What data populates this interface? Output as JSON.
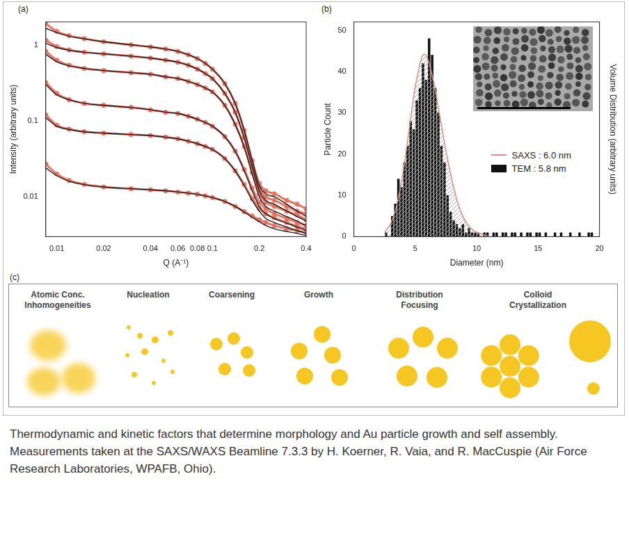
{
  "chart_data": [
    {
      "type": "line",
      "panel_label": "(a)",
      "log": true,
      "grid": false,
      "x_label": "Q (A⁻¹)",
      "y_label": "Intensity (arbitrary units)",
      "xlim": [
        0.0085,
        0.4
      ],
      "ylim": [
        0.003,
        2
      ],
      "xticks": [
        0.01,
        0.02,
        0.04,
        0.06,
        0.08,
        0.1,
        0.2,
        0.4
      ],
      "yticks": [
        0.01,
        0.1,
        1
      ],
      "x": [
        0.0085,
        0.01,
        0.012,
        0.015,
        0.02,
        0.03,
        0.04,
        0.05,
        0.06,
        0.07,
        0.08,
        0.09,
        0.1,
        0.12,
        0.14,
        0.16,
        0.18,
        0.2,
        0.22,
        0.25,
        0.3,
        0.35,
        0.4
      ],
      "series": [
        {
          "color": "#e8735f",
          "marker": "circle",
          "values": [
            1.9,
            1.5,
            1.32,
            1.21,
            1.1,
            1.0,
            0.94,
            0.88,
            0.82,
            0.74,
            0.66,
            0.57,
            0.48,
            0.31,
            0.17,
            0.075,
            0.03,
            0.015,
            0.012,
            0.011,
            0.009,
            0.008,
            0.007
          ]
        },
        {
          "color": "#1a1a1a",
          "line_style": "solid",
          "values": [
            1.65,
            1.45,
            1.3,
            1.2,
            1.1,
            1.0,
            0.94,
            0.88,
            0.82,
            0.74,
            0.66,
            0.57,
            0.48,
            0.31,
            0.17,
            0.075,
            0.03,
            0.014,
            0.011,
            0.01,
            0.008,
            0.0065,
            0.0055
          ]
        },
        {
          "color": "#e8735f",
          "marker": "circle",
          "values": [
            1.15,
            0.95,
            0.86,
            0.8,
            0.76,
            0.71,
            0.67,
            0.63,
            0.59,
            0.54,
            0.48,
            0.42,
            0.36,
            0.23,
            0.13,
            0.06,
            0.026,
            0.013,
            0.01,
            0.009,
            0.0075,
            0.0065,
            0.006
          ]
        },
        {
          "color": "#1a1a1a",
          "line_style": "solid",
          "values": [
            1.05,
            0.92,
            0.85,
            0.8,
            0.76,
            0.71,
            0.67,
            0.63,
            0.59,
            0.54,
            0.48,
            0.42,
            0.36,
            0.23,
            0.13,
            0.06,
            0.025,
            0.012,
            0.009,
            0.008,
            0.0065,
            0.0055,
            0.0048
          ]
        },
        {
          "color": "#e8735f",
          "marker": "circle",
          "values": [
            0.82,
            0.63,
            0.54,
            0.49,
            0.46,
            0.43,
            0.41,
            0.38,
            0.36,
            0.33,
            0.3,
            0.27,
            0.24,
            0.16,
            0.09,
            0.046,
            0.021,
            0.011,
            0.0085,
            0.0075,
            0.0065,
            0.0058,
            0.005
          ]
        },
        {
          "color": "#1a1a1a",
          "line_style": "solid",
          "values": [
            0.75,
            0.6,
            0.53,
            0.49,
            0.46,
            0.43,
            0.41,
            0.38,
            0.36,
            0.33,
            0.3,
            0.27,
            0.24,
            0.16,
            0.09,
            0.045,
            0.02,
            0.01,
            0.0075,
            0.0065,
            0.0055,
            0.0048,
            0.0042
          ]
        },
        {
          "color": "#e8735f",
          "marker": "circle",
          "values": [
            0.32,
            0.23,
            0.19,
            0.17,
            0.16,
            0.15,
            0.14,
            0.13,
            0.125,
            0.115,
            0.105,
            0.095,
            0.085,
            0.062,
            0.04,
            0.023,
            0.013,
            0.0085,
            0.007,
            0.006,
            0.0052,
            0.0046,
            0.0042
          ]
        },
        {
          "color": "#1a1a1a",
          "line_style": "solid",
          "values": [
            0.3,
            0.22,
            0.19,
            0.17,
            0.16,
            0.15,
            0.14,
            0.13,
            0.125,
            0.115,
            0.105,
            0.095,
            0.085,
            0.062,
            0.04,
            0.022,
            0.012,
            0.0075,
            0.006,
            0.0052,
            0.0045,
            0.004,
            0.0036
          ]
        },
        {
          "color": "#e8735f",
          "marker": "circle",
          "values": [
            0.12,
            0.088,
            0.078,
            0.072,
            0.069,
            0.066,
            0.064,
            0.061,
            0.058,
            0.054,
            0.05,
            0.046,
            0.042,
            0.032,
            0.022,
            0.0145,
            0.0095,
            0.007,
            0.006,
            0.0053,
            0.0046,
            0.0041,
            0.0038
          ]
        },
        {
          "color": "#1a1a1a",
          "line_style": "solid",
          "values": [
            0.11,
            0.085,
            0.077,
            0.072,
            0.069,
            0.066,
            0.064,
            0.061,
            0.058,
            0.054,
            0.05,
            0.046,
            0.042,
            0.032,
            0.022,
            0.014,
            0.009,
            0.0065,
            0.0052,
            0.0046,
            0.004,
            0.0036,
            0.0033
          ]
        },
        {
          "color": "#e8735f",
          "marker": "circle",
          "values": [
            0.027,
            0.02,
            0.0165,
            0.0146,
            0.0135,
            0.0128,
            0.0124,
            0.012,
            0.0116,
            0.0112,
            0.0108,
            0.0103,
            0.0098,
            0.0087,
            0.0075,
            0.0064,
            0.0056,
            0.005,
            0.0046,
            0.0042,
            0.0038,
            0.0036,
            0.0034
          ]
        },
        {
          "color": "#1a1a1a",
          "line_style": "solid",
          "values": [
            0.024,
            0.019,
            0.016,
            0.0145,
            0.0135,
            0.0128,
            0.0124,
            0.012,
            0.0116,
            0.0112,
            0.0108,
            0.0103,
            0.0098,
            0.0087,
            0.0075,
            0.0063,
            0.0054,
            0.0047,
            0.0042,
            0.0038,
            0.0035,
            0.0033,
            0.0031
          ]
        }
      ]
    },
    {
      "type": "histogram",
      "panel_label": "(b)",
      "grid": false,
      "legend": "right",
      "x_label": "Diameter (nm)",
      "y_label": "Particle Count",
      "y2_label": "Volume Distribution (arbitrary units)",
      "xlim": [
        0,
        20
      ],
      "ylim": [
        0,
        52
      ],
      "y2lim": [
        0,
        1
      ],
      "xticks": [
        0,
        5,
        10,
        15,
        20
      ],
      "yticks": [
        0,
        10,
        20,
        30,
        40,
        50
      ],
      "bins": [
        2.5,
        2.75,
        3,
        3.25,
        3.5,
        3.75,
        4,
        4.25,
        4.5,
        4.75,
        5,
        5.25,
        5.5,
        5.75,
        6,
        6.25,
        6.5,
        6.75,
        7,
        7.25,
        7.5,
        7.75,
        8,
        8.25,
        8.5,
        8.75,
        9,
        9.25,
        9.5,
        9.75,
        10,
        10.25,
        10.5,
        10.75,
        11,
        11.25,
        11.5,
        11.75,
        12,
        12.25,
        12.5,
        12.75,
        13,
        13.25,
        13.5,
        13.75,
        14,
        14.25,
        14.5,
        14.75,
        15,
        15.25,
        15.5,
        15.75,
        16,
        16.25,
        16.5,
        16.75,
        17,
        17.25,
        17.5,
        17.75,
        18,
        18.25,
        18.5,
        18.75,
        19,
        19.25,
        19.5,
        19.75,
        20
      ],
      "series": [
        {
          "name": "SAXS : 6.0 nm",
          "type": "line",
          "color": "#d98f84",
          "axis": "y2",
          "x": [
            2.5,
            3,
            3.5,
            4,
            4.5,
            5,
            5.5,
            5.75,
            6,
            6.5,
            7,
            7.5,
            8,
            8.5,
            9,
            9.5,
            10,
            10.5,
            11
          ],
          "values": [
            0.02,
            0.06,
            0.15,
            0.3,
            0.5,
            0.7,
            0.83,
            0.85,
            0.83,
            0.72,
            0.56,
            0.4,
            0.26,
            0.15,
            0.08,
            0.04,
            0.02,
            0.01,
            0
          ]
        },
        {
          "name": "TEM : 5.8 nm",
          "type": "bar",
          "color": "#111111",
          "values": [
            1,
            0,
            5,
            8,
            14,
            12,
            18,
            22,
            28,
            26,
            33,
            36,
            42,
            38,
            48,
            44,
            36,
            30,
            22,
            18,
            10,
            6,
            4,
            3,
            2,
            3,
            1,
            2,
            1,
            1,
            1,
            0,
            1,
            1,
            0,
            1,
            1,
            0,
            1,
            1,
            0,
            1,
            1,
            0,
            1,
            0,
            1,
            1,
            0,
            1,
            1,
            0,
            1,
            0,
            0,
            1,
            0,
            1,
            0,
            0,
            1,
            0,
            0,
            1,
            0,
            0,
            1,
            1,
            0,
            0
          ]
        }
      ]
    }
  ],
  "diagram": {
    "panel_label": "(c)",
    "stages": [
      "Atomic Conc. Inhomogeneities",
      "Nucleation",
      "Coarsening",
      "Growth",
      "Distribution Focusing",
      "Colloid Crystallization"
    ]
  },
  "caption": "Thermodynamic and kinetic factors that determine morphology and Au particle growth and self assembly. Measurements taken at the SAXS/WAXS Beamline 7.3.3 by H. Koerner, R. Vaia, and R. MacCuspie (Air Force Research Laboratories, WPAFB, Ohio)."
}
